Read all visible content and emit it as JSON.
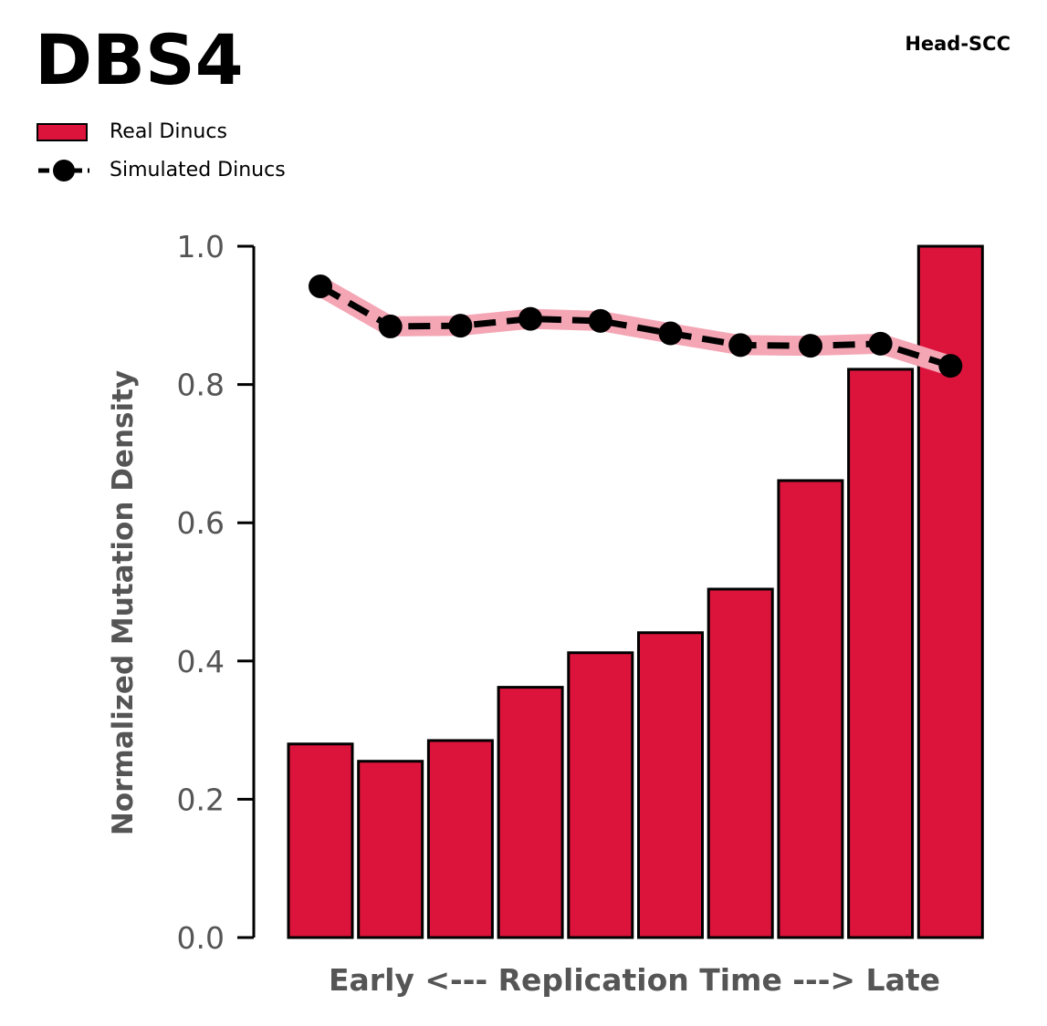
{
  "title": "DBS4",
  "subtitle": "Head-SCC",
  "legend": {
    "real_label": "Real Dinucs",
    "simulated_label": "Simulated Dinucs"
  },
  "colors": {
    "bar_fill": "#DC143C",
    "bar_edge": "#000000",
    "sim_line": "#000000",
    "sim_band": "#F4A6B5",
    "axis_text": "#555555"
  },
  "chart_data": {
    "type": "bar",
    "title": "DBS4",
    "subtitle": "Head-SCC",
    "xlabel": "Early <--- Replication Time ---> Late",
    "ylabel": "Normalized Mutation Density",
    "ylim": [
      0,
      1.0
    ],
    "yticks": [
      0.0,
      0.2,
      0.4,
      0.6,
      0.8,
      1.0
    ],
    "ytick_labels": [
      "0.0",
      "0.2",
      "0.4",
      "0.6",
      "0.8",
      "1.0"
    ],
    "categories": [
      1,
      2,
      3,
      4,
      5,
      6,
      7,
      8,
      9,
      10
    ],
    "grid": false,
    "legend_position": "top-left",
    "series": [
      {
        "name": "Real Dinucs",
        "type": "bar",
        "values": [
          0.28,
          0.255,
          0.285,
          0.362,
          0.412,
          0.441,
          0.504,
          0.661,
          0.822,
          1.0
        ]
      },
      {
        "name": "Simulated Dinucs",
        "type": "line",
        "values": [
          0.942,
          0.884,
          0.885,
          0.895,
          0.892,
          0.874,
          0.857,
          0.856,
          0.859,
          0.827
        ]
      }
    ]
  }
}
